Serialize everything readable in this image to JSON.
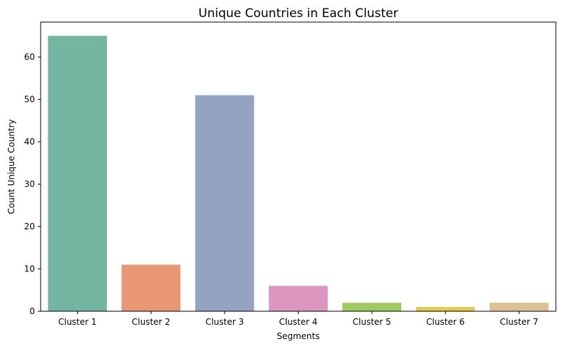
{
  "chart_data": {
    "type": "bar",
    "title": "Unique Countries in Each Cluster",
    "xlabel": "Segments",
    "ylabel": "Count Unique Country",
    "categories": [
      "Cluster 1",
      "Cluster 2",
      "Cluster 3",
      "Cluster 4",
      "Cluster 5",
      "Cluster 6",
      "Cluster 7"
    ],
    "values": [
      65,
      11,
      51,
      6,
      2,
      1,
      2
    ],
    "colors": [
      "#72b6a1",
      "#e99675",
      "#95a3c3",
      "#db96c0",
      "#a0cb63",
      "#e3cb4a",
      "#dbc195"
    ],
    "ylim": [
      0,
      68.25
    ],
    "yticks": [
      0,
      10,
      20,
      30,
      40,
      50,
      60
    ],
    "grid": false,
    "legend": "none"
  }
}
